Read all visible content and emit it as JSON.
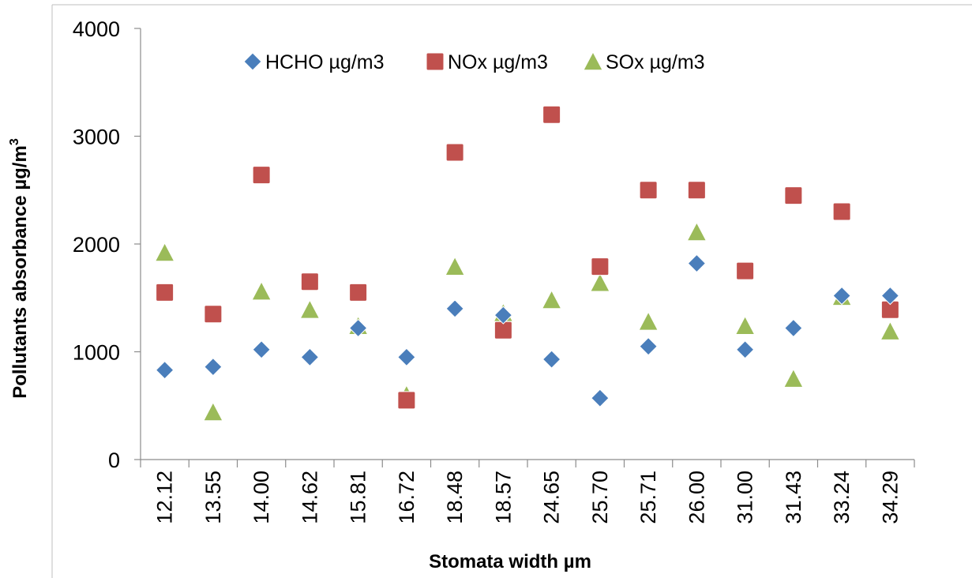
{
  "chart_data": {
    "type": "scatter",
    "title": "",
    "xlabel": "Stomata width µm",
    "ylabel": "Pollutants absorbance  µg/m",
    "ylabel_superscript": "3",
    "ylim": [
      0,
      4000
    ],
    "yticks": [
      0,
      1000,
      2000,
      3000,
      4000
    ],
    "grid": false,
    "legend_position": "top-center",
    "categories": [
      "12.12",
      "13.55",
      "14.00",
      "14.62",
      "15.81",
      "16.72",
      "18.48",
      "18.57",
      "24.65",
      "25.70",
      "25.71",
      "26.00",
      "31.00",
      "31.43",
      "33.24",
      "34.29"
    ],
    "series": [
      {
        "name": "HCHO µg/m3",
        "marker": "diamond",
        "color": "#4a7ebb",
        "values": [
          830,
          860,
          1020,
          950,
          1220,
          950,
          1400,
          1340,
          930,
          570,
          1050,
          1820,
          1020,
          1220,
          1520,
          1520
        ]
      },
      {
        "name": "NOx µg/m3",
        "marker": "square",
        "color": "#c0504d",
        "values": [
          1550,
          1350,
          2640,
          1650,
          1550,
          550,
          2850,
          1200,
          3200,
          1790,
          2500,
          2500,
          1750,
          2450,
          2300,
          1390
        ]
      },
      {
        "name": "SOx µg/m3",
        "marker": "triangle",
        "color": "#9bbb59",
        "values": [
          1920,
          440,
          1560,
          1390,
          1240,
          600,
          1790,
          1360,
          1480,
          1640,
          1280,
          2110,
          1240,
          750,
          1510,
          1190
        ]
      }
    ]
  }
}
